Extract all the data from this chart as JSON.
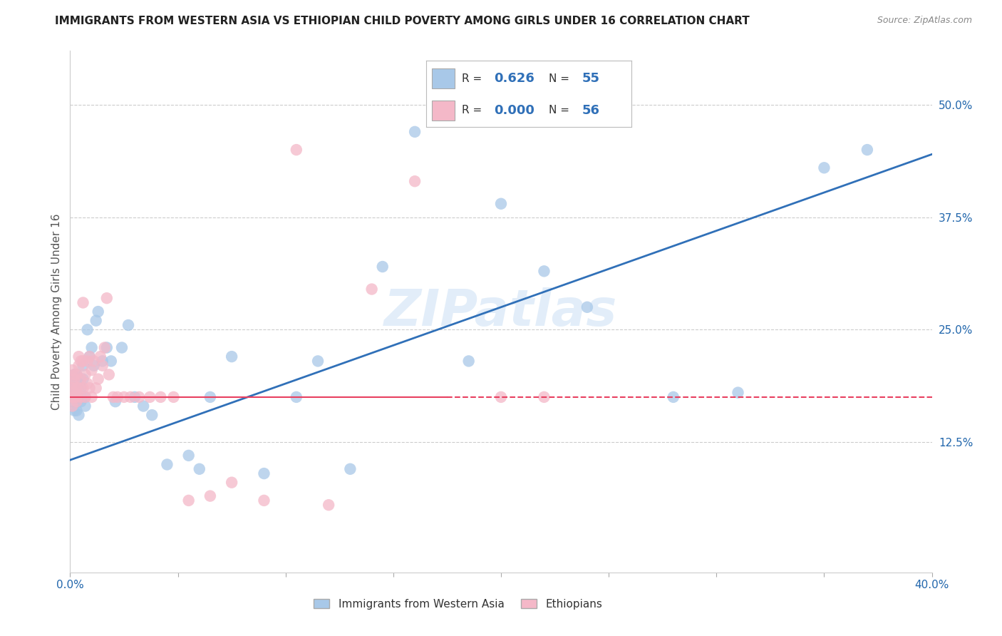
{
  "title": "IMMIGRANTS FROM WESTERN ASIA VS ETHIOPIAN CHILD POVERTY AMONG GIRLS UNDER 16 CORRELATION CHART",
  "source": "Source: ZipAtlas.com",
  "ylabel": "Child Poverty Among Girls Under 16",
  "xlim": [
    0.0,
    0.4
  ],
  "ylim": [
    -0.02,
    0.56
  ],
  "xtick_positions": [
    0.0,
    0.05,
    0.1,
    0.15,
    0.2,
    0.25,
    0.3,
    0.35,
    0.4
  ],
  "xticklabels": [
    "0.0%",
    "",
    "",
    "",
    "",
    "",
    "",
    "",
    "40.0%"
  ],
  "yticks_right": [
    0.125,
    0.25,
    0.375,
    0.5
  ],
  "yticklabels_right": [
    "12.5%",
    "25.0%",
    "37.5%",
    "50.0%"
  ],
  "blue_color": "#a8c8e8",
  "pink_color": "#f4b8c8",
  "blue_line_color": "#3070b8",
  "pink_line_color": "#e84060",
  "legend_R_blue": "0.626",
  "legend_N_blue": "55",
  "legend_R_pink": "0.000",
  "legend_N_pink": "56",
  "legend_label_blue": "Immigrants from Western Asia",
  "legend_label_pink": "Ethiopians",
  "blue_scatter_x": [
    0.001,
    0.001,
    0.001,
    0.002,
    0.002,
    0.002,
    0.002,
    0.003,
    0.003,
    0.003,
    0.003,
    0.004,
    0.004,
    0.004,
    0.005,
    0.005,
    0.005,
    0.006,
    0.006,
    0.007,
    0.007,
    0.008,
    0.009,
    0.01,
    0.011,
    0.012,
    0.013,
    0.015,
    0.017,
    0.019,
    0.021,
    0.024,
    0.027,
    0.03,
    0.034,
    0.038,
    0.045,
    0.055,
    0.06,
    0.065,
    0.075,
    0.09,
    0.105,
    0.115,
    0.13,
    0.145,
    0.16,
    0.185,
    0.2,
    0.22,
    0.24,
    0.28,
    0.31,
    0.35,
    0.37
  ],
  "blue_scatter_y": [
    0.17,
    0.18,
    0.195,
    0.16,
    0.175,
    0.185,
    0.2,
    0.16,
    0.17,
    0.19,
    0.2,
    0.155,
    0.175,
    0.195,
    0.17,
    0.185,
    0.175,
    0.195,
    0.21,
    0.165,
    0.175,
    0.25,
    0.22,
    0.23,
    0.21,
    0.26,
    0.27,
    0.215,
    0.23,
    0.215,
    0.17,
    0.23,
    0.255,
    0.175,
    0.165,
    0.155,
    0.1,
    0.11,
    0.095,
    0.175,
    0.22,
    0.09,
    0.175,
    0.215,
    0.095,
    0.32,
    0.47,
    0.215,
    0.39,
    0.315,
    0.275,
    0.175,
    0.18,
    0.43,
    0.45
  ],
  "pink_scatter_x": [
    0.001,
    0.001,
    0.001,
    0.001,
    0.001,
    0.002,
    0.002,
    0.002,
    0.002,
    0.003,
    0.003,
    0.003,
    0.003,
    0.004,
    0.004,
    0.004,
    0.005,
    0.005,
    0.005,
    0.006,
    0.006,
    0.006,
    0.007,
    0.007,
    0.008,
    0.008,
    0.009,
    0.009,
    0.01,
    0.01,
    0.011,
    0.012,
    0.013,
    0.014,
    0.015,
    0.016,
    0.017,
    0.018,
    0.02,
    0.022,
    0.025,
    0.028,
    0.032,
    0.037,
    0.042,
    0.048,
    0.055,
    0.065,
    0.075,
    0.09,
    0.105,
    0.12,
    0.14,
    0.16,
    0.2,
    0.22
  ],
  "pink_scatter_y": [
    0.19,
    0.205,
    0.175,
    0.165,
    0.185,
    0.195,
    0.175,
    0.18,
    0.2,
    0.17,
    0.185,
    0.2,
    0.175,
    0.22,
    0.21,
    0.185,
    0.175,
    0.195,
    0.215,
    0.28,
    0.215,
    0.185,
    0.175,
    0.2,
    0.215,
    0.19,
    0.22,
    0.185,
    0.205,
    0.175,
    0.215,
    0.185,
    0.195,
    0.22,
    0.21,
    0.23,
    0.285,
    0.2,
    0.175,
    0.175,
    0.175,
    0.175,
    0.175,
    0.175,
    0.175,
    0.175,
    0.06,
    0.065,
    0.08,
    0.06,
    0.45,
    0.055,
    0.295,
    0.415,
    0.175,
    0.175
  ],
  "blue_line_x0": 0.0,
  "blue_line_x1": 0.4,
  "blue_line_y0": 0.105,
  "blue_line_y1": 0.445,
  "pink_line_y": 0.175,
  "pink_line_x_solid_end": 0.175,
  "watermark_text": "ZIPatlas",
  "grid_color": "#cccccc",
  "background_color": "#ffffff",
  "title_color": "#222222",
  "source_color": "#888888",
  "axis_color": "#2166ac",
  "ylabel_color": "#555555"
}
